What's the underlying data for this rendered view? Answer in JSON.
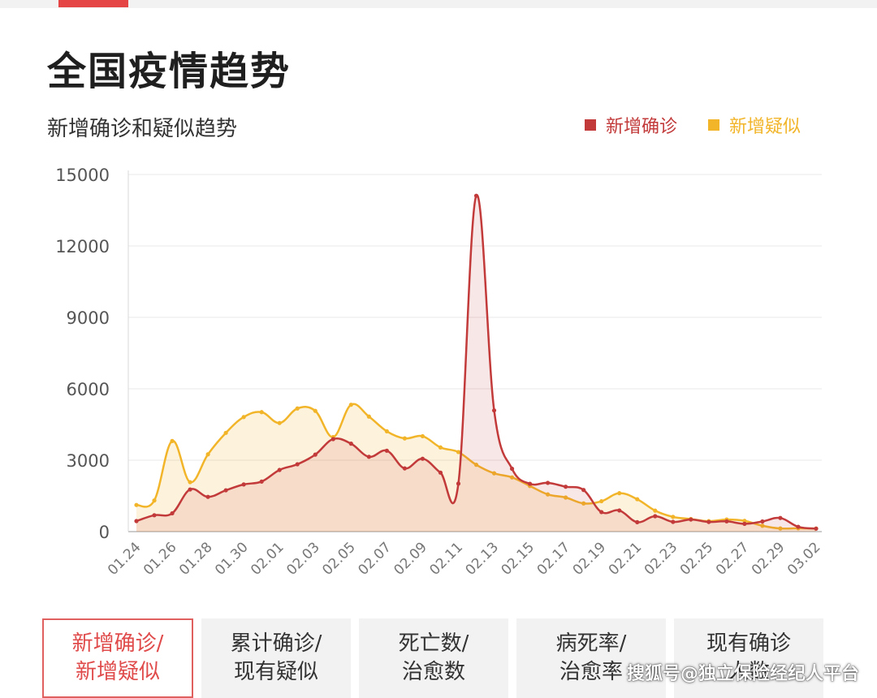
{
  "page_title": "全国疫情趋势",
  "subtitle": "新增确诊和疑似趋势",
  "legend": {
    "confirmed": {
      "label": "新增确诊",
      "color": "#c23a3a"
    },
    "suspected": {
      "label": "新增疑似",
      "color": "#f2b52a"
    }
  },
  "tabs": [
    {
      "line1": "新增确诊/",
      "line2": "新增疑似",
      "active": true
    },
    {
      "line1": "累计确诊/",
      "line2": "现有疑似",
      "active": false
    },
    {
      "line1": "死亡数/",
      "line2": "治愈数",
      "active": false
    },
    {
      "line1": "病死率/",
      "line2": "治愈率",
      "active": false
    },
    {
      "line1": "现有确诊",
      "line2": "人数",
      "active": false
    }
  ],
  "watermark": "搜狐号@独立保险经纪人平台",
  "chart_data": {
    "type": "area",
    "ylim": [
      0,
      15000
    ],
    "yticks": [
      0,
      3000,
      6000,
      9000,
      12000,
      15000
    ],
    "ytick_labels": [
      "0",
      "3000",
      "6000",
      "9000",
      "12000",
      "15000"
    ],
    "x": [
      "01.24",
      "01.25",
      "01.26",
      "01.27",
      "01.28",
      "01.29",
      "01.30",
      "01.31",
      "02.01",
      "02.02",
      "02.03",
      "02.04",
      "02.05",
      "02.06",
      "02.07",
      "02.08",
      "02.09",
      "02.10",
      "02.11",
      "02.12",
      "02.13",
      "02.14",
      "02.15",
      "02.16",
      "02.17",
      "02.18",
      "02.19",
      "02.20",
      "02.21",
      "02.22",
      "02.23",
      "02.24",
      "02.25",
      "02.26",
      "02.27",
      "02.28",
      "02.29",
      "03.01",
      "03.02"
    ],
    "xtick_labels": [
      "01.24",
      "01.26",
      "01.28",
      "01.30",
      "02.01",
      "02.03",
      "02.05",
      "02.07",
      "02.09",
      "02.11",
      "02.13",
      "02.15",
      "02.17",
      "02.19",
      "02.21",
      "02.23",
      "02.25",
      "02.27",
      "02.29",
      "03.02"
    ],
    "series": [
      {
        "name": "新增确诊",
        "color": "#c23a3a",
        "values": [
          444,
          688,
          769,
          1771,
          1459,
          1737,
          1982,
          2102,
          2590,
          2829,
          3235,
          3887,
          3694,
          3143,
          3399,
          2656,
          3062,
          2478,
          2015,
          14108,
          5090,
          2641,
          2009,
          2048,
          1886,
          1749,
          820,
          889,
          397,
          648,
          409,
          508,
          406,
          433,
          327,
          427,
          573,
          202,
          125
        ]
      },
      {
        "name": "新增疑似",
        "color": "#f2b52a",
        "values": [
          1118,
          1309,
          3806,
          2077,
          3248,
          4148,
          4812,
          5019,
          4562,
          5173,
          5072,
          3971,
          5328,
          4833,
          4214,
          3916,
          4008,
          3536,
          3342,
          2807,
          2450,
          2277,
          1918,
          1563,
          1432,
          1185,
          1277,
          1614,
          1361,
          882,
          620,
          530,
          439,
          508,
          452,
          248,
          132,
          141,
          129
        ]
      }
    ]
  }
}
